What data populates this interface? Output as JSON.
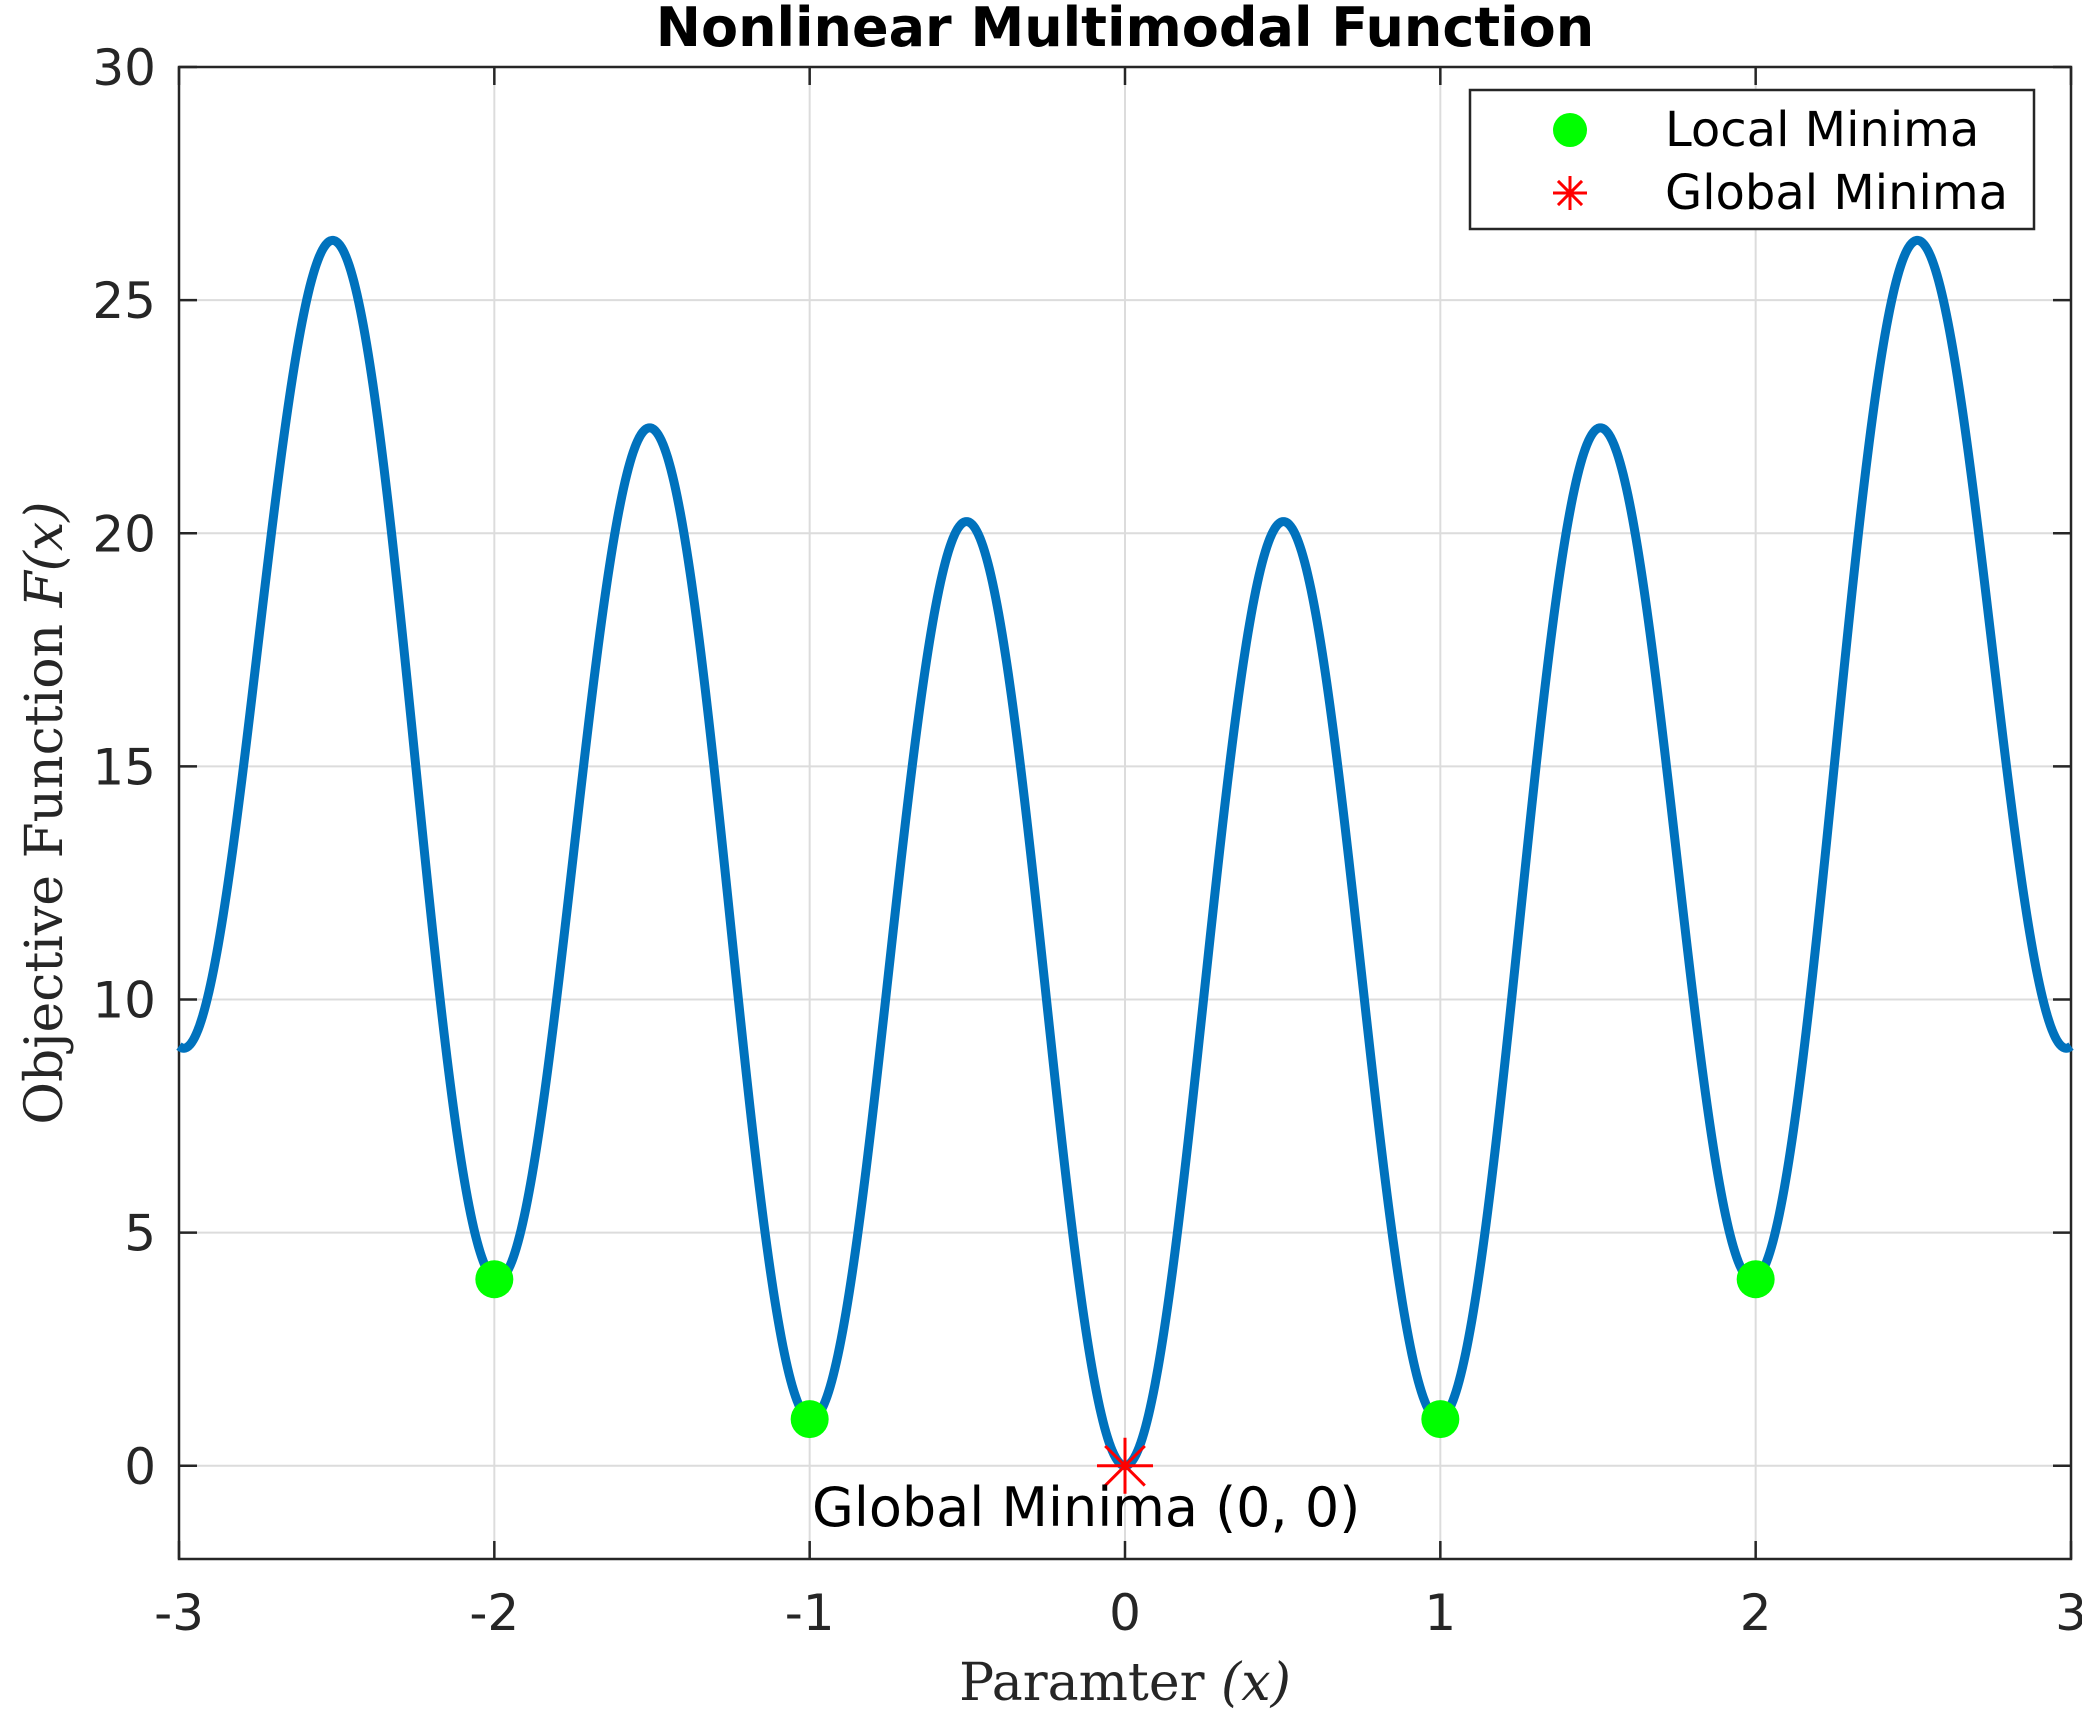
{
  "chart_data": {
    "type": "line",
    "title": "Nonlinear Multimodal Function",
    "xlabel_text": "Paramter ",
    "xlabel_math": "(x)",
    "ylabel_text": "Objective Function ",
    "ylabel_math": "F(x)",
    "xlim": [
      -3,
      3
    ],
    "ylim": [
      -2,
      30
    ],
    "xticks": [
      "-3",
      "-2",
      "-1",
      "0",
      "1",
      "2",
      "3"
    ],
    "yticks": [
      "0",
      "5",
      "10",
      "15",
      "20",
      "25",
      "30"
    ],
    "grid": true,
    "legend_position": "top-right",
    "series": [
      {
        "name": "",
        "style": "line",
        "color": "#0072BD",
        "function": "x^2 + 10*(1 - cos(2*pi*x))",
        "x_range": [
          -3,
          3
        ]
      },
      {
        "name": "Local Minima",
        "style": "marker-circle",
        "color": "#00FF00",
        "points": [
          [
            -2,
            4
          ],
          [
            -1,
            1
          ],
          [
            1,
            1
          ],
          [
            2,
            4
          ]
        ]
      },
      {
        "name": "Global Minima",
        "style": "marker-asterisk",
        "color": "#FF0000",
        "points": [
          [
            0,
            0
          ]
        ]
      }
    ],
    "annotations": [
      {
        "text": "Global Minima (0, 0)",
        "x": 0,
        "y": 0
      }
    ]
  }
}
